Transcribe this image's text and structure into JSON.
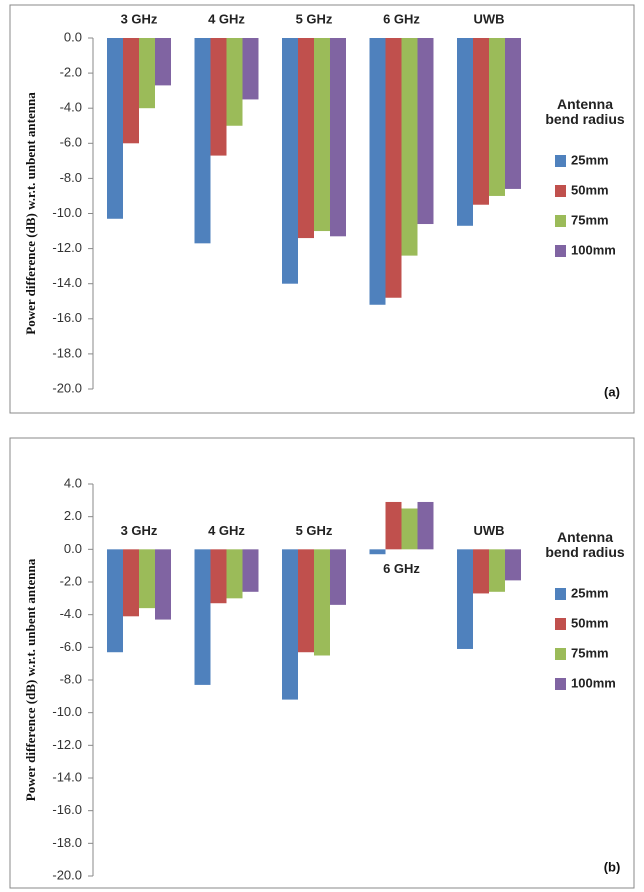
{
  "chart_data": [
    {
      "type": "bar",
      "ylabel": "Power difference (dB) w.r.t. unbent antenna",
      "panel_label": "(a)",
      "legend_title": "Antenna bend radius",
      "categories": [
        "3 GHz",
        "4 GHz",
        "5 GHz",
        "6 GHz",
        "UWB"
      ],
      "series": [
        {
          "name": "25mm",
          "color": "#4f81bd",
          "values": [
            -10.3,
            -11.7,
            -14.0,
            -15.2,
            -10.7
          ]
        },
        {
          "name": "50mm",
          "color": "#c0504d",
          "values": [
            -6.0,
            -6.7,
            -11.4,
            -14.8,
            -9.5
          ]
        },
        {
          "name": "75mm",
          "color": "#9bbb59",
          "values": [
            -4.0,
            -5.0,
            -11.0,
            -12.4,
            -9.0
          ]
        },
        {
          "name": "100mm",
          "color": "#8064a2",
          "values": [
            -2.7,
            -3.5,
            -11.3,
            -10.6,
            -8.6
          ]
        }
      ],
      "ylim": [
        0,
        -20
      ],
      "yticks": [
        {
          "value": 0,
          "label": "0.0"
        },
        {
          "value": -2,
          "label": "-2.0"
        },
        {
          "value": -4,
          "label": "-4.0"
        },
        {
          "value": -6,
          "label": "-6.0"
        },
        {
          "value": -8,
          "label": "-8.0"
        },
        {
          "value": -10,
          "label": "-10.0"
        },
        {
          "value": -12,
          "label": "-12.0"
        },
        {
          "value": -14,
          "label": "-14.0"
        },
        {
          "value": -16,
          "label": "-16.0"
        },
        {
          "value": -18,
          "label": "-18.0"
        },
        {
          "value": -20,
          "label": "-20.0"
        }
      ]
    },
    {
      "type": "bar",
      "ylabel": "Power difference (dB) w.r.t. unbent antenna",
      "panel_label": "(b)",
      "legend_title": "Antenna bend radius",
      "categories": [
        "3 GHz",
        "4 GHz",
        "5 GHz",
        "6 GHz",
        "UWB"
      ],
      "series": [
        {
          "name": "25mm",
          "color": "#4f81bd",
          "values": [
            -6.3,
            -8.3,
            -9.2,
            -0.3,
            -6.1
          ]
        },
        {
          "name": "50mm",
          "color": "#c0504d",
          "values": [
            -4.1,
            -3.3,
            -6.3,
            2.9,
            -2.7
          ]
        },
        {
          "name": "75mm",
          "color": "#9bbb59",
          "values": [
            -3.6,
            -3.0,
            -6.5,
            2.5,
            -2.6
          ]
        },
        {
          "name": "100mm",
          "color": "#8064a2",
          "values": [
            -4.3,
            -2.6,
            -3.4,
            2.9,
            -1.9
          ]
        }
      ],
      "ylim": [
        4,
        -20
      ],
      "yticks": [
        {
          "value": 4,
          "label": "4.0"
        },
        {
          "value": 2,
          "label": "2.0"
        },
        {
          "value": 0,
          "label": "0.0"
        },
        {
          "value": -2,
          "label": "-2.0"
        },
        {
          "value": -4,
          "label": "-4.0"
        },
        {
          "value": -6,
          "label": "-6.0"
        },
        {
          "value": -8,
          "label": "-8.0"
        },
        {
          "value": -10,
          "label": "-10.0"
        },
        {
          "value": -12,
          "label": "-12.0"
        },
        {
          "value": -14,
          "label": "-14.0"
        },
        {
          "value": -16,
          "label": "-16.0"
        },
        {
          "value": -18,
          "label": "-18.0"
        },
        {
          "value": -20,
          "label": "-20.0"
        }
      ]
    }
  ]
}
